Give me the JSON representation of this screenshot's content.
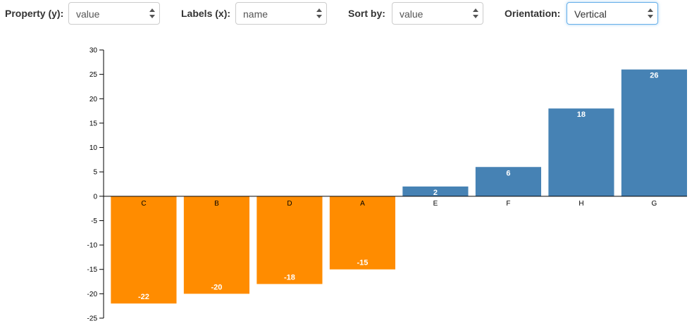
{
  "controls": {
    "property": {
      "label": "Property (y):",
      "value": "value"
    },
    "labels": {
      "label": "Labels (x):",
      "value": "name"
    },
    "sort": {
      "label": "Sort by:",
      "value": "value"
    },
    "orientation": {
      "label": "Orientation:",
      "value": "Vertical"
    }
  },
  "colors": {
    "positive": "#4682b4",
    "negative": "#ff8c00",
    "axis": "#000000"
  },
  "chart_data": {
    "type": "bar",
    "title": "",
    "xlabel": "",
    "ylabel": "",
    "categories": [
      "C",
      "B",
      "D",
      "A",
      "E",
      "F",
      "H",
      "G"
    ],
    "values": [
      -22,
      -20,
      -18,
      -15,
      2,
      6,
      18,
      26
    ],
    "ylim": [
      -25,
      30
    ],
    "yticks": [
      30,
      25,
      20,
      15,
      10,
      5,
      0,
      -5,
      -10,
      -15,
      -20,
      -25
    ],
    "grid": false,
    "legend": "none"
  }
}
